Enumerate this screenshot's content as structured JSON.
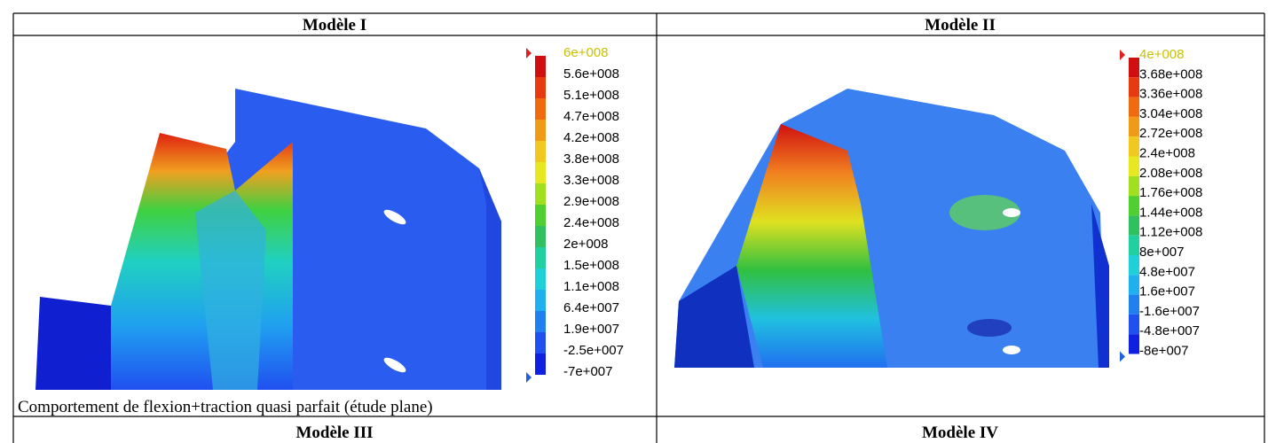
{
  "table": {
    "header_row": [
      "Modèle I",
      "Modèle II"
    ],
    "models": [
      {
        "legend": [
          "6e+008",
          "5.6e+008",
          "5.1e+008",
          "4.7e+008",
          "4.2e+008",
          "3.8e+008",
          "3.3e+008",
          "2.9e+008",
          "2.4e+008",
          "2e+008",
          "1.5e+008",
          "1.1e+008",
          "6.4e+007",
          "1.9e+007",
          "-2.5e+007",
          "-7e+007"
        ],
        "caption": "Comportement de flexion+traction quasi parfait (étude plane)"
      },
      {
        "legend": [
          "4e+008",
          "3.68e+008",
          "3.36e+008",
          "3.04e+008",
          "2.72e+008",
          "2.4e+008",
          "2.08e+008",
          "1.76e+008",
          "1.44e+008",
          "1.12e+008",
          "8e+007",
          "4.8e+007",
          "1.6e+007",
          "-1.6e+007",
          "-4.8e+007",
          "-8e+007"
        ]
      }
    ],
    "footer_row": [
      "Modèle III",
      "Modèle IV"
    ]
  }
}
